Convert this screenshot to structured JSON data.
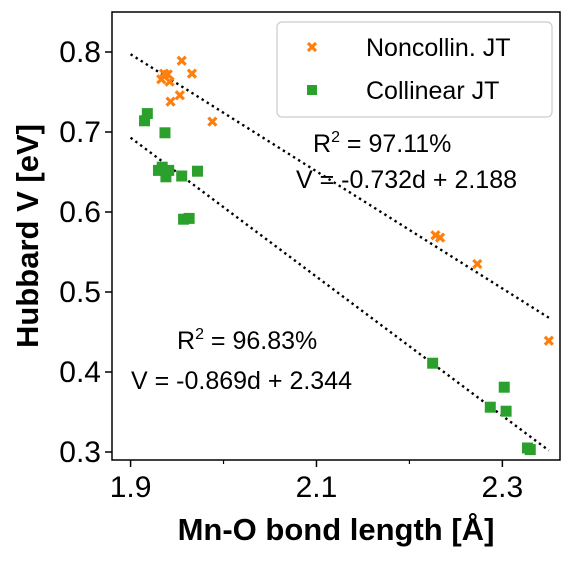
{
  "chart_data": {
    "type": "scatter",
    "xlabel": "Mn-O bond length [Å]",
    "ylabel": "Hubbard V [eV]",
    "xlim": [
      1.88,
      2.362
    ],
    "ylim": [
      0.29,
      0.85
    ],
    "x_ticks": [
      1.9,
      2.1,
      2.3
    ],
    "x_tick_labels": [
      "1.9",
      "2.1",
      "2.3"
    ],
    "x_minor_ticks": [
      2.0,
      2.2
    ],
    "y_ticks": [
      0.3,
      0.4,
      0.5,
      0.6,
      0.7,
      0.8
    ],
    "y_tick_labels": [
      "0.3",
      "0.4",
      "0.5",
      "0.6",
      "0.7",
      "0.8"
    ],
    "grid": false,
    "legend_position": "top-right",
    "series": [
      {
        "name": "Noncollin. JT",
        "marker": "x",
        "color": "#ff7f0e",
        "points": [
          [
            1.933,
            0.766
          ],
          [
            1.936,
            0.773
          ],
          [
            1.94,
            0.772
          ],
          [
            1.942,
            0.763
          ],
          [
            1.955,
            0.789
          ],
          [
            1.966,
            0.773
          ],
          [
            1.943,
            0.738
          ],
          [
            1.953,
            0.746
          ],
          [
            1.988,
            0.713
          ],
          [
            2.228,
            0.571
          ],
          [
            2.233,
            0.568
          ],
          [
            2.273,
            0.535
          ],
          [
            2.35,
            0.439
          ]
        ]
      },
      {
        "name": "Collinear JT",
        "marker": "square",
        "color": "#2ca02c",
        "points": [
          [
            1.915,
            0.714
          ],
          [
            1.918,
            0.723
          ],
          [
            1.937,
            0.699
          ],
          [
            1.93,
            0.652
          ],
          [
            1.934,
            0.656
          ],
          [
            1.938,
            0.644
          ],
          [
            1.941,
            0.652
          ],
          [
            1.955,
            0.645
          ],
          [
            1.972,
            0.651
          ],
          [
            1.957,
            0.591
          ],
          [
            1.963,
            0.592
          ],
          [
            2.225,
            0.411
          ],
          [
            2.287,
            0.356
          ],
          [
            2.302,
            0.381
          ],
          [
            2.304,
            0.351
          ],
          [
            2.327,
            0.305
          ],
          [
            2.33,
            0.303
          ]
        ]
      }
    ],
    "fit_lines": [
      {
        "slope": -0.732,
        "intercept": 2.188,
        "x_range": [
          1.9,
          2.35
        ]
      },
      {
        "slope": -0.869,
        "intercept": 2.344,
        "x_range": [
          1.9,
          2.35
        ]
      }
    ],
    "annotations": [
      {
        "r2_label": "R",
        "r2_sup": "2",
        "r2_value": " = 97.11%",
        "equation": "V = -0.732d + 2.188"
      },
      {
        "r2_label": "R",
        "r2_sup": "2",
        "r2_value": " = 96.83%",
        "equation": "V = -0.869d + 2.344"
      }
    ]
  }
}
